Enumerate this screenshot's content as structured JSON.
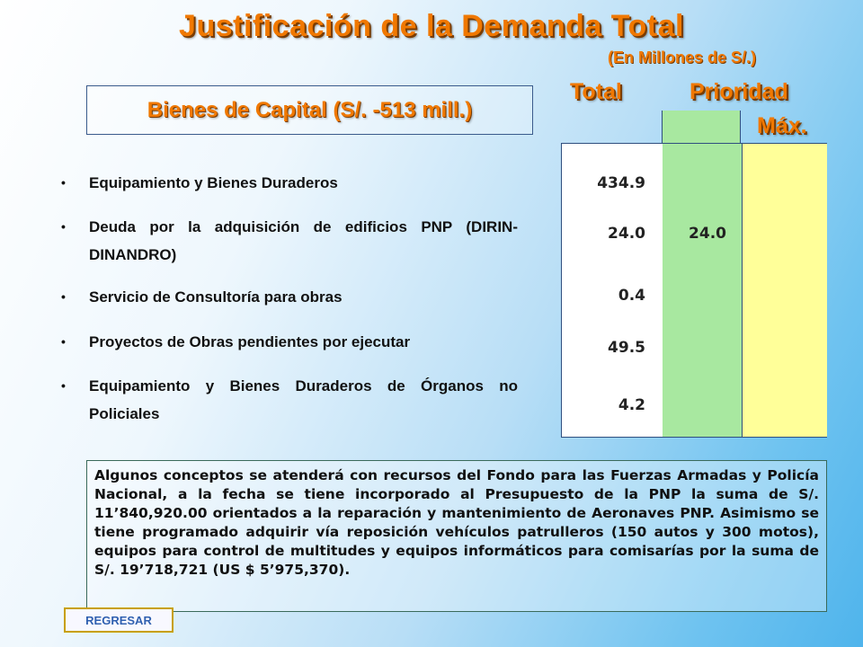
{
  "header": {
    "title": "Justificación de la Demanda Total",
    "subtitle": "(En Millones de S/.)"
  },
  "section": {
    "title": "Bienes de Capital (S/. -513 mill.)"
  },
  "table": {
    "headers": {
      "total": "Total",
      "prioridad": "Prioridad",
      "maxima": "Máx."
    },
    "rows": [
      {
        "concepto": "Equipamiento y Bienes Duraderos",
        "total": "434.9",
        "prioridad": ""
      },
      {
        "concepto": "Deuda por la adquisición de edificios PNP (DIRIN-DINANDRO)",
        "total": "24.0",
        "prioridad": "24.0"
      },
      {
        "concepto": "Servicio de Consultoría para obras",
        "total": "0.4",
        "prioridad": ""
      },
      {
        "concepto": "Proyectos de Obras pendientes por ejecutar",
        "total": "49.5",
        "prioridad": ""
      },
      {
        "concepto": "Equipamiento y Bienes Duraderos de Órganos no Policiales",
        "total": "4.2",
        "prioridad": ""
      }
    ]
  },
  "note": {
    "text": "Algunos conceptos se atenderá con recursos del Fondo para las Fuerzas Armadas y Policía Nacional, a la fecha se tiene incorporado al Presupuesto de la PNP la suma de S/. 11’840,920.00 orientados a la reparación y mantenimiento de Aeronaves PNP. Asimismo se tiene programado adquirir vía reposición vehículos patrulleros (150 autos y 300 motos), equipos para control de multitudes y equipos informáticos para comisarías por la suma de S/. 19’718,721 (US $ 5’975,370)."
  },
  "nav": {
    "back_label": "REGRESAR"
  },
  "colors": {
    "accent": "#f07800",
    "prioridad_bg": "#a8e8a0",
    "maxima_bg": "#ffff99"
  }
}
